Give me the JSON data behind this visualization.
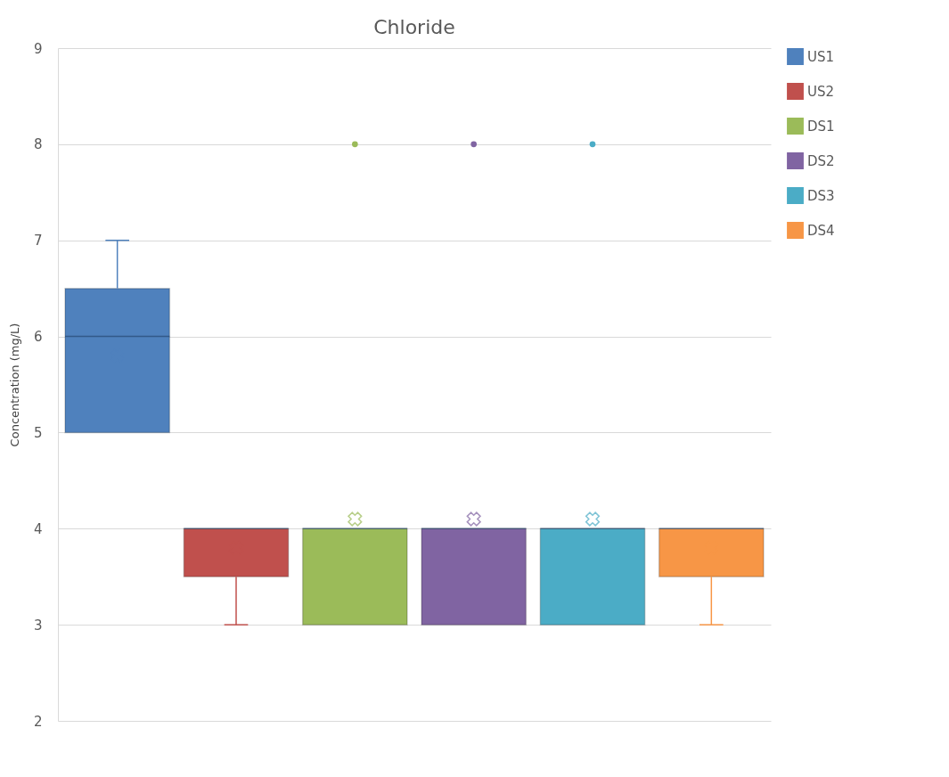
{
  "chart_data": {
    "type": "box",
    "title": "Chloride",
    "ylabel": "Concentration (mg/L)",
    "categories": [
      null
    ],
    "ylim": [
      2,
      9
    ],
    "yticks": [
      2,
      3,
      4,
      5,
      6,
      7,
      8,
      9
    ],
    "grid": "y",
    "tick_labels": "y",
    "legend": "right",
    "marker": "cross",
    "series": [
      {
        "name": "US1",
        "color": "#4f81bd",
        "boxes": [
          {
            "low": 5,
            "q1": 5,
            "median": 6,
            "q3": 6.5,
            "high": 7,
            "mean": 5.8
          }
        ]
      },
      {
        "name": "US2",
        "color": "#c0504d",
        "boxes": [
          {
            "low": 3,
            "q1": 3.5,
            "median": 4,
            "q3": 4,
            "high": 4,
            "mean": 3.8
          }
        ]
      },
      {
        "name": "DS1",
        "color": "#9bbb59",
        "boxes": [
          {
            "low": 3,
            "q1": 3,
            "median": 4,
            "q3": 4,
            "high": 4,
            "mean": 4.1,
            "outliers": [
              8
            ]
          }
        ]
      },
      {
        "name": "DS2",
        "color": "#8064a2",
        "boxes": [
          {
            "low": 3,
            "q1": 3,
            "median": 4,
            "q3": 4,
            "high": 4,
            "mean": 4.1,
            "outliers": [
              8
            ]
          }
        ]
      },
      {
        "name": "DS3",
        "color": "#4bacc6",
        "boxes": [
          {
            "low": 3,
            "q1": 3,
            "median": 4,
            "q3": 4,
            "high": 4,
            "mean": 4.1,
            "outliers": [
              8
            ]
          }
        ]
      },
      {
        "name": "DS4",
        "color": "#f79646",
        "boxes": [
          {
            "low": 3,
            "q1": 3.5,
            "median": 4,
            "q3": 4,
            "high": 4,
            "mean": 3.8
          }
        ]
      }
    ]
  }
}
